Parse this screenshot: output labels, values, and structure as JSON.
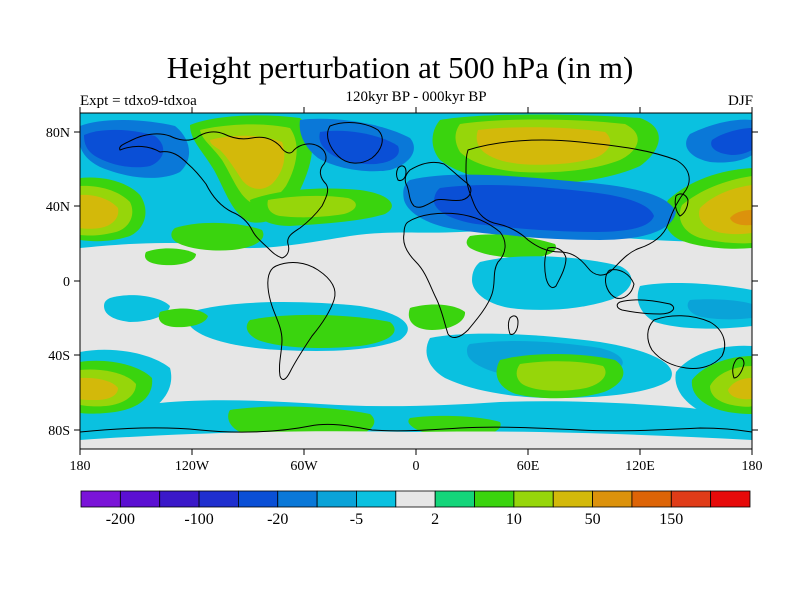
{
  "title": "Height perturbation at 500 hPa (in m)",
  "subtitle": "120kyr BP - 000kyr BP",
  "left_label": "Expt = tdxo9-tdxoa",
  "right_label": "DJF",
  "lat_ticks": [
    "80N",
    "40N",
    "0",
    "40S",
    "80S"
  ],
  "lon_ticks": [
    "180",
    "120W",
    "60W",
    "0",
    "60E",
    "120E",
    "180"
  ],
  "colorbar": {
    "colors": [
      "#7a14d8",
      "#5b0fd2",
      "#3a18c9",
      "#1f2fcf",
      "#0a4fd6",
      "#0a78d8",
      "#0aa3d8",
      "#0ac1e0",
      "#e6e6e6",
      "#14d57a",
      "#3ad40e",
      "#96d60a",
      "#d3b90a",
      "#dc920c",
      "#dd6406",
      "#e03c18",
      "#e60a0a"
    ],
    "labels": [
      "-200",
      "-100",
      "-20",
      "-5",
      "2",
      "10",
      "50",
      "150"
    ]
  }
}
